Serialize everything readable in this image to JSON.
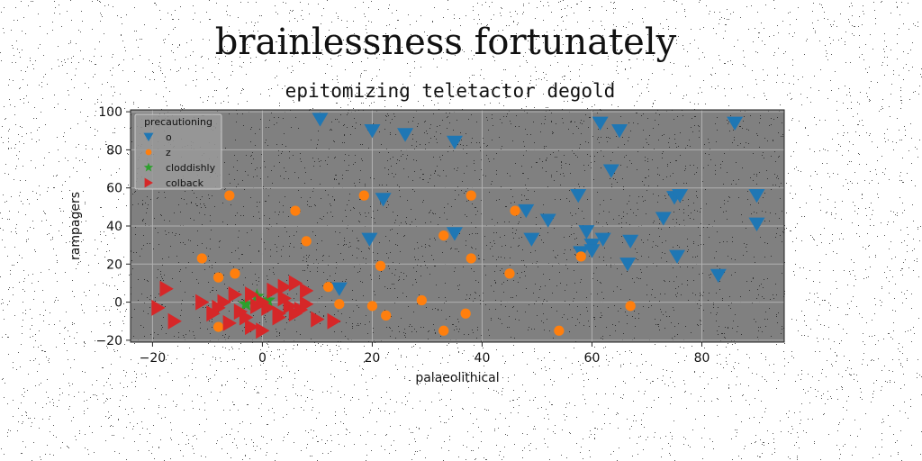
{
  "chart_data": {
    "type": "scatter",
    "title": "brainlessness fortunately",
    "subtitle": "epitomizing teletactor degold",
    "xlabel": "palaeolithical",
    "ylabel": "rampagers",
    "xlim": [
      -24,
      95
    ],
    "ylim": [
      -21,
      101
    ],
    "xticks": [
      -20,
      0,
      20,
      40,
      60,
      80
    ],
    "yticks": [
      -20,
      0,
      20,
      40,
      60,
      80,
      100
    ],
    "grid": true,
    "background": "#808080",
    "legend": {
      "title": "precautioning",
      "placement": "top-left"
    },
    "series": [
      {
        "name": "o",
        "marker": "triangle-down",
        "color": "#1f77b4",
        "points": [
          [
            10.5,
            96
          ],
          [
            20,
            90
          ],
          [
            26,
            88
          ],
          [
            35,
            84
          ],
          [
            61.5,
            94
          ],
          [
            65,
            90
          ],
          [
            86,
            94
          ],
          [
            63.5,
            69
          ],
          [
            57.5,
            56
          ],
          [
            75,
            55
          ],
          [
            76,
            56
          ],
          [
            90,
            56
          ],
          [
            48,
            48
          ],
          [
            52,
            43
          ],
          [
            73,
            44
          ],
          [
            90,
            41
          ],
          [
            59,
            37
          ],
          [
            60,
            30
          ],
          [
            62,
            33
          ],
          [
            67,
            32
          ],
          [
            49,
            33
          ],
          [
            35,
            36
          ],
          [
            19.5,
            33
          ],
          [
            22,
            54
          ],
          [
            58,
            26
          ],
          [
            60,
            27
          ],
          [
            66.5,
            20
          ],
          [
            75.5,
            24
          ],
          [
            83,
            14
          ],
          [
            14,
            7
          ]
        ]
      },
      {
        "name": "z",
        "marker": "circle",
        "color": "#ff7f0e",
        "points": [
          [
            -6,
            56
          ],
          [
            18.5,
            56
          ],
          [
            38,
            56
          ],
          [
            6,
            48
          ],
          [
            46,
            48
          ],
          [
            8,
            32
          ],
          [
            33,
            35
          ],
          [
            -11,
            23
          ],
          [
            21.5,
            19
          ],
          [
            38,
            23
          ],
          [
            58,
            24
          ],
          [
            45,
            15
          ],
          [
            -8,
            13
          ],
          [
            -5,
            15
          ],
          [
            12,
            8
          ],
          [
            29,
            1
          ],
          [
            14,
            -1
          ],
          [
            20,
            -2
          ],
          [
            67,
            -2
          ],
          [
            22.5,
            -7
          ],
          [
            37,
            -6
          ],
          [
            -8,
            -13
          ],
          [
            33,
            -15
          ],
          [
            54,
            -15
          ]
        ]
      },
      {
        "name": "cloddishly",
        "marker": "star",
        "color": "#2ca02c",
        "points": [
          [
            -1,
            3
          ],
          [
            -3,
            -1
          ],
          [
            1,
            1
          ]
        ]
      },
      {
        "name": "colback",
        "marker": "triangle-right",
        "color": "#d62728",
        "points": [
          [
            -17.5,
            7
          ],
          [
            -11,
            0
          ],
          [
            -7,
            0
          ],
          [
            -5,
            4
          ],
          [
            -2,
            4
          ],
          [
            2,
            6
          ],
          [
            4,
            8
          ],
          [
            6,
            10
          ],
          [
            8,
            6
          ],
          [
            -19,
            -3
          ],
          [
            -16,
            -10
          ],
          [
            -8,
            -3
          ],
          [
            -4,
            -5
          ],
          [
            -1,
            -2
          ],
          [
            1,
            -3
          ],
          [
            3,
            -6
          ],
          [
            5,
            -2
          ],
          [
            7,
            -4
          ],
          [
            10,
            -9
          ],
          [
            13,
            -10
          ],
          [
            -6,
            -11
          ],
          [
            -2,
            -13
          ],
          [
            0,
            -15
          ],
          [
            3,
            -8
          ],
          [
            6,
            -6
          ],
          [
            -9,
            -6
          ],
          [
            -3,
            -8
          ],
          [
            0,
            0
          ],
          [
            4,
            2
          ],
          [
            8,
            -1
          ]
        ]
      }
    ]
  }
}
